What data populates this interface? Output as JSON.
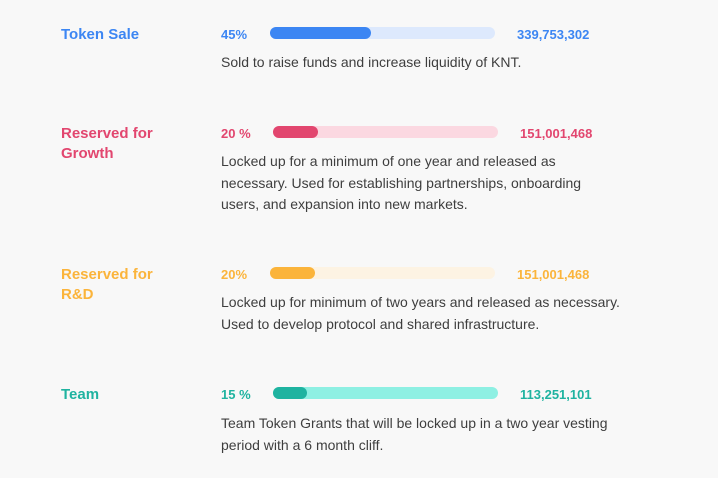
{
  "allocations": [
    {
      "title": "Token Sale",
      "percent_label": "45%",
      "fill_fraction": 0.45,
      "amount": "339,753,302",
      "description": "Sold to raise funds and increase liquidity of KNT.",
      "color": "#3c86f3",
      "track_color": "#dde9fd"
    },
    {
      "title": "Reserved for Growth",
      "percent_label": "20 %",
      "fill_fraction": 0.2,
      "amount": "151,001,468",
      "description": "Locked up for a minimum of one year and released as necessary. Used for establishing partnerships, onboarding users, and expansion into new markets.",
      "color": "#e2466f",
      "track_color": "#fbd8e1"
    },
    {
      "title": "Reserved for R&D",
      "percent_label": "20%",
      "fill_fraction": 0.2,
      "amount": "151,001,468",
      "description": "Locked up for minimum of two years and released as necessary. Used to develop protocol and shared infrastructure.",
      "color": "#fbb43b",
      "track_color": "#fdf3e3"
    },
    {
      "title": "Team",
      "percent_label": "15 %",
      "fill_fraction": 0.15,
      "amount": "113,251,101",
      "description": "Team Token Grants that will be locked up in a two year vesting period with a 6 month cliff.",
      "color": "#1fb3a0",
      "track_color": "#8ef0e3"
    }
  ]
}
